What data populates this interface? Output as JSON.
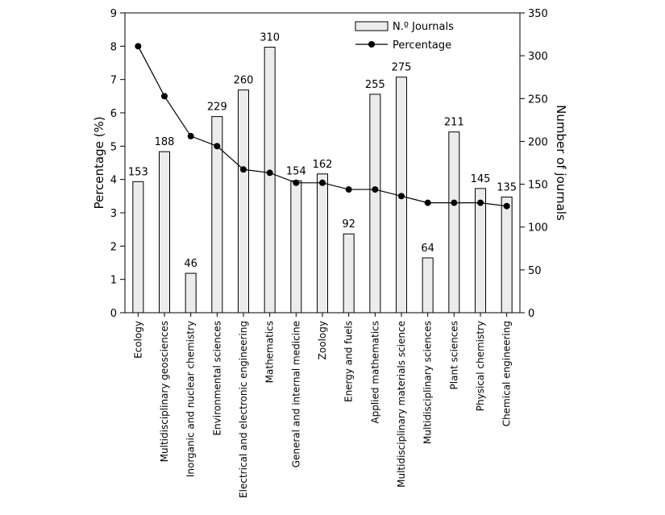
{
  "chart_data": {
    "type": "bar+line",
    "categories": [
      "Ecology",
      "Multidisciplinary geosciences",
      "Inorganic and nuclear chemistry",
      "Environmental sciences",
      "Electrical and electronic engineering",
      "Mathematics",
      "General and internal medicine",
      "Zoology",
      "Energy and fuels",
      "Applied mathematics",
      "Multidisciplinary materials science",
      "Multidisciplinary sciences",
      "Plant sciences",
      "Physical chemistry",
      "Chemical engineering"
    ],
    "series": [
      {
        "name": "N.º Journals",
        "type": "bar",
        "axis": "right",
        "color": "#ececec",
        "values": [
          153,
          188,
          46,
          229,
          260,
          310,
          154,
          162,
          92,
          255,
          275,
          64,
          211,
          145,
          135
        ]
      },
      {
        "name": "Percentage",
        "type": "line",
        "axis": "left",
        "color": "#000000",
        "values": [
          8.0,
          6.5,
          5.3,
          5.0,
          4.3,
          4.2,
          3.9,
          3.9,
          3.7,
          3.7,
          3.5,
          3.3,
          3.3,
          3.3,
          3.2
        ]
      }
    ],
    "left_axis": {
      "label": "Percentage (%)",
      "range": [
        0,
        9
      ],
      "ticks": [
        "0",
        "1",
        "2",
        "3",
        "4",
        "5",
        "6",
        "7",
        "8",
        "9"
      ]
    },
    "right_axis": {
      "label": "Number of journals",
      "range": [
        0,
        350
      ],
      "ticks": [
        "0",
        "50",
        "100",
        "150",
        "200",
        "250",
        "300",
        "350"
      ]
    },
    "legend": {
      "position": "top-center",
      "items": [
        "N.º Journals",
        "Percentage"
      ]
    },
    "grid": false
  }
}
